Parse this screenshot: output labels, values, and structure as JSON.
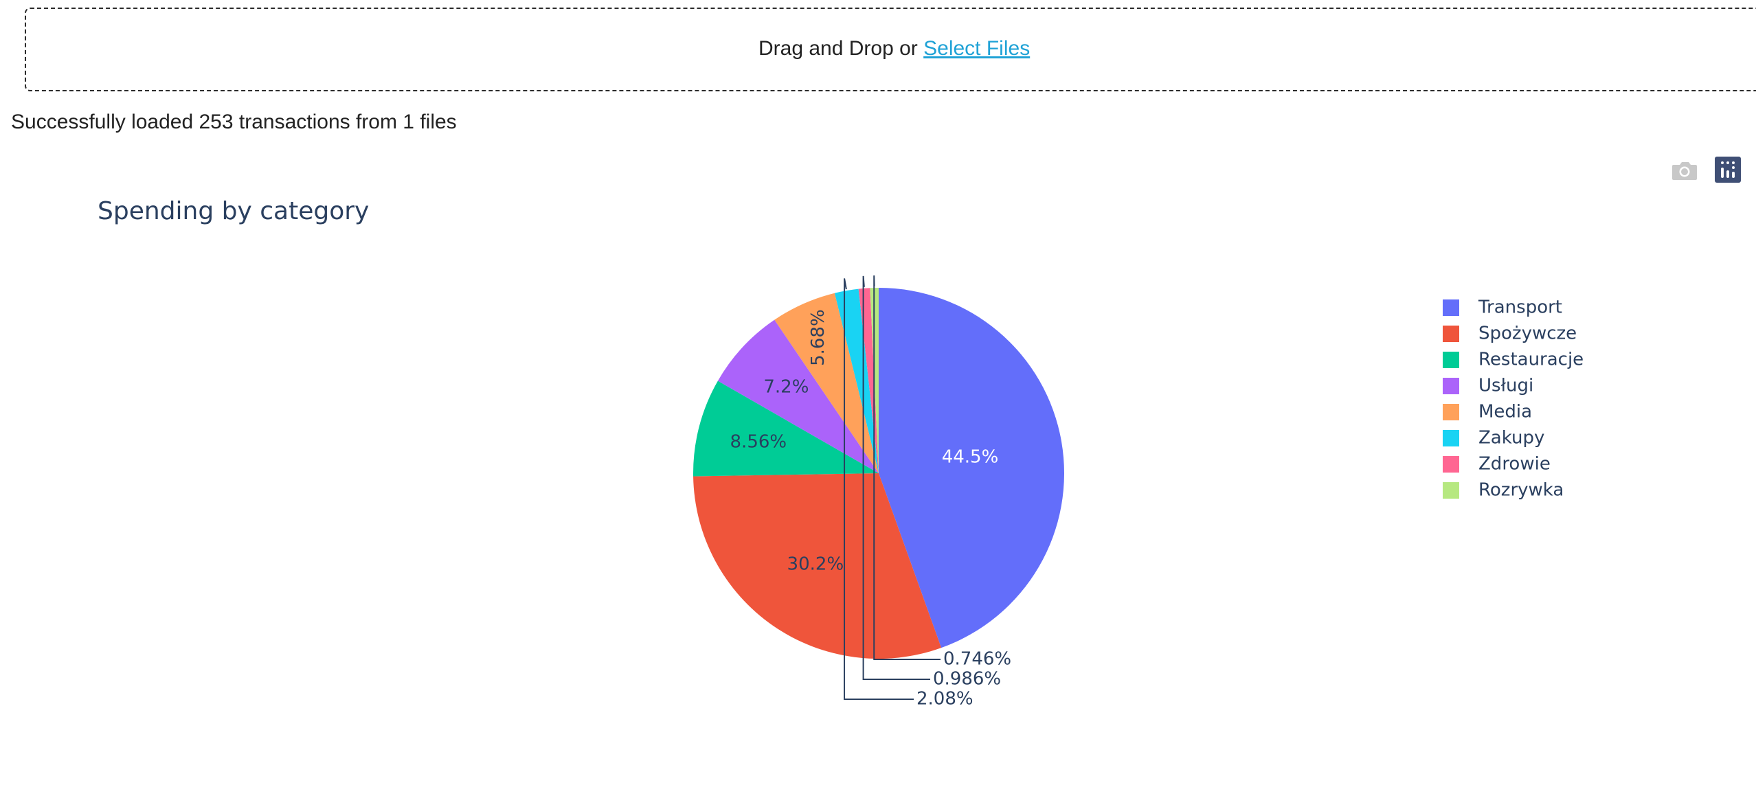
{
  "upload": {
    "prompt": "Drag and Drop or",
    "link_label": "Select Files"
  },
  "status": {
    "message": "Successfully loaded 253 transactions from 1 files"
  },
  "modebar": {
    "buttons": [
      "camera-icon",
      "plotly-logo-icon"
    ],
    "icon_color_inactive": "#c8c8c8",
    "logo_color": "#3f4f75"
  },
  "chart_data": {
    "type": "pie",
    "title": "Spending by category",
    "legend_position": "right",
    "text_color": "#2a3f5f",
    "labels": [
      "Transport",
      "Spożywcze",
      "Restauracje",
      "Usługi",
      "Media",
      "Zakupy",
      "Zdrowie",
      "Rozrywka"
    ],
    "percentages": [
      44.5,
      30.2,
      8.56,
      7.2,
      5.68,
      2.08,
      0.986,
      0.746
    ],
    "text_labels": [
      "44.5%",
      "30.2%",
      "8.56%",
      "7.2%",
      "5.68%",
      "2.08%",
      "0.986%",
      "0.746%"
    ],
    "colors": [
      "#636efa",
      "#ef553b",
      "#00cc96",
      "#ab63fa",
      "#ffa15a",
      "#19d3f3",
      "#ff6692",
      "#b6e880"
    ],
    "direction": "clockwise",
    "rotation_start": "top"
  }
}
